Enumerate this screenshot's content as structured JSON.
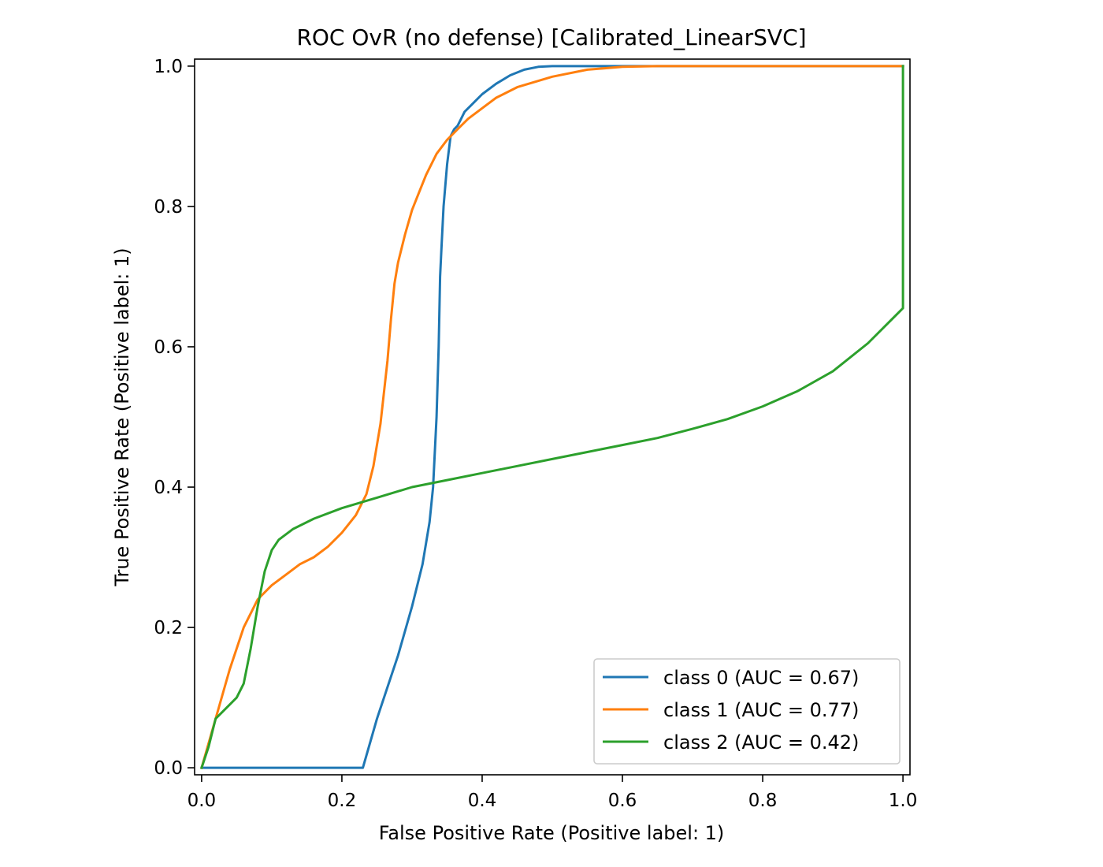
{
  "chart_data": {
    "type": "line",
    "title": "ROC OvR (no defense) [Calibrated_LinearSVC]",
    "xlabel": "False Positive Rate (Positive label: 1)",
    "ylabel": "True Positive Rate (Positive label: 1)",
    "xlim": [
      -0.01,
      1.01
    ],
    "ylim": [
      -0.01,
      1.01
    ],
    "xticks": [
      0.0,
      0.2,
      0.4,
      0.6,
      0.8,
      1.0
    ],
    "yticks": [
      0.0,
      0.2,
      0.4,
      0.6,
      0.8,
      1.0
    ],
    "xtick_labels": [
      "0.0",
      "0.2",
      "0.4",
      "0.6",
      "0.8",
      "1.0"
    ],
    "ytick_labels": [
      "0.0",
      "0.2",
      "0.4",
      "0.6",
      "0.8",
      "1.0"
    ],
    "grid": false,
    "legend_position": "lower-right",
    "series": [
      {
        "name": "class 0 (AUC = 0.67)",
        "color": "#1f77b4",
        "x": [
          0.0,
          0.23,
          0.25,
          0.28,
          0.3,
          0.315,
          0.325,
          0.33,
          0.335,
          0.338,
          0.34,
          0.342,
          0.345,
          0.35,
          0.355,
          0.36,
          0.365,
          0.37,
          0.375,
          0.385,
          0.4,
          0.42,
          0.44,
          0.46,
          0.48,
          0.5,
          0.55,
          0.6,
          1.0
        ],
        "y": [
          0.0,
          0.0,
          0.07,
          0.16,
          0.23,
          0.29,
          0.35,
          0.4,
          0.5,
          0.6,
          0.7,
          0.74,
          0.8,
          0.86,
          0.9,
          0.91,
          0.915,
          0.925,
          0.935,
          0.945,
          0.96,
          0.975,
          0.987,
          0.995,
          0.999,
          1.0,
          1.0,
          1.0,
          1.0
        ]
      },
      {
        "name": "class 1 (AUC = 0.77)",
        "color": "#ff7f0e",
        "x": [
          0.0,
          0.02,
          0.04,
          0.06,
          0.08,
          0.1,
          0.12,
          0.14,
          0.16,
          0.18,
          0.2,
          0.22,
          0.235,
          0.245,
          0.255,
          0.265,
          0.27,
          0.275,
          0.28,
          0.29,
          0.3,
          0.31,
          0.32,
          0.335,
          0.35,
          0.365,
          0.38,
          0.4,
          0.42,
          0.45,
          0.5,
          0.55,
          0.6,
          0.65,
          1.0
        ],
        "y": [
          0.0,
          0.07,
          0.14,
          0.2,
          0.24,
          0.26,
          0.275,
          0.29,
          0.3,
          0.315,
          0.335,
          0.36,
          0.39,
          0.43,
          0.49,
          0.58,
          0.64,
          0.69,
          0.72,
          0.76,
          0.795,
          0.82,
          0.845,
          0.875,
          0.895,
          0.91,
          0.925,
          0.94,
          0.955,
          0.97,
          0.985,
          0.995,
          0.999,
          1.0,
          1.0
        ]
      },
      {
        "name": "class 2 (AUC = 0.42)",
        "color": "#2ca02c",
        "x": [
          0.0,
          0.01,
          0.02,
          0.03,
          0.05,
          0.06,
          0.07,
          0.08,
          0.09,
          0.1,
          0.11,
          0.13,
          0.16,
          0.2,
          0.25,
          0.3,
          0.35,
          0.4,
          0.45,
          0.5,
          0.55,
          0.6,
          0.65,
          0.7,
          0.75,
          0.8,
          0.85,
          0.9,
          0.95,
          0.98,
          1.0,
          1.0,
          1.0
        ],
        "y": [
          0.0,
          0.03,
          0.07,
          0.08,
          0.1,
          0.12,
          0.17,
          0.23,
          0.28,
          0.31,
          0.325,
          0.34,
          0.355,
          0.37,
          0.385,
          0.4,
          0.41,
          0.42,
          0.43,
          0.44,
          0.45,
          0.46,
          0.47,
          0.483,
          0.497,
          0.515,
          0.537,
          0.565,
          0.605,
          0.635,
          0.655,
          0.655,
          1.0
        ]
      }
    ]
  }
}
